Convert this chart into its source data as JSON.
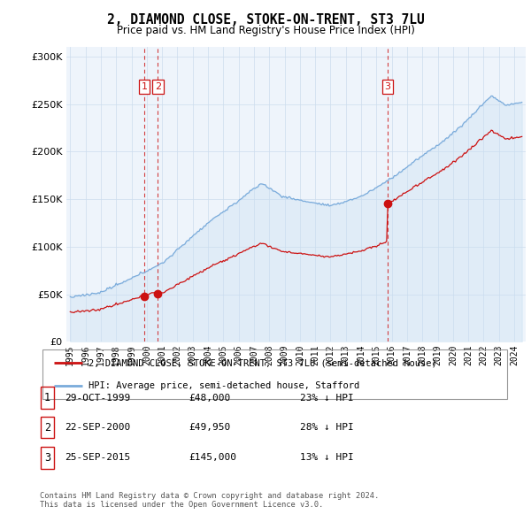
{
  "title": "2, DIAMOND CLOSE, STOKE-ON-TRENT, ST3 7LU",
  "subtitle": "Price paid vs. HM Land Registry's House Price Index (HPI)",
  "ylim": [
    0,
    310000
  ],
  "yticks": [
    0,
    50000,
    100000,
    150000,
    200000,
    250000,
    300000
  ],
  "xlim_start": 1994.75,
  "xlim_end": 2024.75,
  "hpi_color": "#7aabdb",
  "hpi_fill": "#c8dff2",
  "price_color": "#cc1111",
  "vline_color": "#cc1111",
  "background_color": "#ffffff",
  "grid_color": "#ccddee",
  "sale_events": [
    {
      "label": "1",
      "date_num": 1999.83,
      "price": 48000
    },
    {
      "label": "2",
      "date_num": 2000.72,
      "price": 49950
    },
    {
      "label": "3",
      "date_num": 2015.73,
      "price": 145000
    }
  ],
  "legend_entries": [
    "2, DIAMOND CLOSE, STOKE-ON-TRENT, ST3 7LU (semi-detached house)",
    "HPI: Average price, semi-detached house, Stafford"
  ],
  "table_rows": [
    {
      "num": "1",
      "date": "29-OCT-1999",
      "price": "£48,000",
      "pct": "23% ↓ HPI"
    },
    {
      "num": "2",
      "date": "22-SEP-2000",
      "price": "£49,950",
      "pct": "28% ↓ HPI"
    },
    {
      "num": "3",
      "date": "25-SEP-2015",
      "price": "£145,000",
      "pct": "13% ↓ HPI"
    }
  ],
  "footnote": "Contains HM Land Registry data © Crown copyright and database right 2024.\nThis data is licensed under the Open Government Licence v3.0."
}
